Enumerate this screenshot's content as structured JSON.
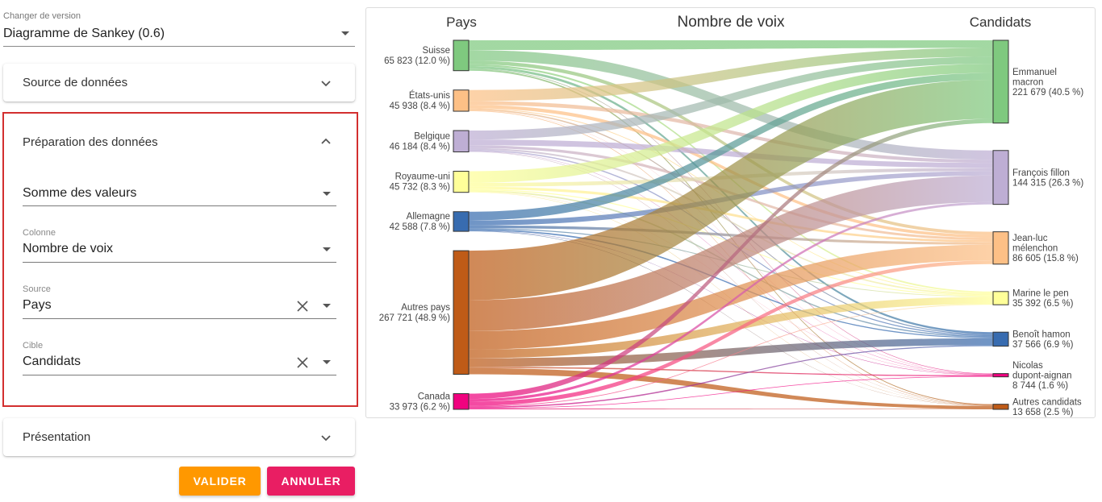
{
  "version": {
    "label": "Changer de version",
    "value": "Diagramme de Sankey (0.6)"
  },
  "panels": {
    "source": {
      "title": "Source de données"
    },
    "preparation": {
      "title": "Préparation des données",
      "aggregation": "Somme des valeurs",
      "column": {
        "label": "Colonne",
        "value": "Nombre de voix"
      },
      "source_field": {
        "label": "Source",
        "value": "Pays"
      },
      "target_field": {
        "label": "Cible",
        "value": "Candidats"
      }
    },
    "presentation": {
      "title": "Présentation"
    }
  },
  "buttons": {
    "validate": "VALIDER",
    "cancel": "ANNULER"
  },
  "colors": {
    "validate": "#ff9800",
    "cancel": "#e91e63",
    "highlight_border": "#d32f2f"
  },
  "chart_data": {
    "type": "sankey",
    "title": "Nombre de voix",
    "left_header": "Pays",
    "right_header": "Candidats",
    "sources": [
      {
        "name": "Suisse",
        "label": "65 823 (12.0 %)",
        "value": 65823,
        "color": "#7fc97f"
      },
      {
        "name": "États-unis",
        "label": "45 938 (8.4 %)",
        "value": 45938,
        "color": "#fdc086"
      },
      {
        "name": "Belgique",
        "label": "46 184 (8.4 %)",
        "value": 46184,
        "color": "#beaed4"
      },
      {
        "name": "Royaume-uni",
        "label": "45 732 (8.3 %)",
        "value": 45732,
        "color": "#ffff99"
      },
      {
        "name": "Allemagne",
        "label": "42 588 (7.8 %)",
        "value": 42588,
        "color": "#386cb0"
      },
      {
        "name": "Autres pays",
        "label": "267 721 (48.9 %)",
        "value": 267721,
        "color": "#bf5b17"
      },
      {
        "name": "Canada",
        "label": "33 973 (6.2 %)",
        "value": 33973,
        "color": "#f0027f"
      }
    ],
    "targets": [
      {
        "lines": [
          "Emmanuel",
          "macron"
        ],
        "label": "221 679 (40.5 %)",
        "value": 221679,
        "color": "#7fc97f"
      },
      {
        "lines": [
          "François fillon"
        ],
        "label": "144 315 (26.3 %)",
        "value": 144315,
        "color": "#beaed4"
      },
      {
        "lines": [
          "Jean-luc",
          "mélenchon"
        ],
        "label": "86 605 (15.8 %)",
        "value": 86605,
        "color": "#fdc086"
      },
      {
        "lines": [
          "Marine le pen"
        ],
        "label": "35 392 (6.5 %)",
        "value": 35392,
        "color": "#ffff99"
      },
      {
        "lines": [
          "Benoît hamon"
        ],
        "label": "37 566 (6.9 %)",
        "value": 37566,
        "color": "#386cb0"
      },
      {
        "lines": [
          "Nicolas",
          "dupont-aignan"
        ],
        "label": "8 744 (1.6 %)",
        "value": 8744,
        "color": "#f0027f"
      },
      {
        "lines": [
          "Autres candidats"
        ],
        "label": "13 658 (2.5 %)",
        "value": 13658,
        "color": "#bf5b17"
      }
    ],
    "flows": [
      [
        0,
        0,
        0.32
      ],
      [
        0,
        1,
        0.35
      ],
      [
        0,
        2,
        0.12
      ],
      [
        0,
        3,
        0.06
      ],
      [
        0,
        4,
        0.08
      ],
      [
        0,
        5,
        0.02
      ],
      [
        0,
        6,
        0.05
      ],
      [
        1,
        0,
        0.52
      ],
      [
        1,
        1,
        0.18
      ],
      [
        1,
        2,
        0.16
      ],
      [
        1,
        3,
        0.04
      ],
      [
        1,
        4,
        0.06
      ],
      [
        1,
        5,
        0.01
      ],
      [
        1,
        6,
        0.03
      ],
      [
        2,
        0,
        0.42
      ],
      [
        2,
        1,
        0.27
      ],
      [
        2,
        2,
        0.13
      ],
      [
        2,
        3,
        0.08
      ],
      [
        2,
        4,
        0.06
      ],
      [
        2,
        5,
        0.02
      ],
      [
        2,
        6,
        0.02
      ],
      [
        3,
        0,
        0.55
      ],
      [
        3,
        1,
        0.18
      ],
      [
        3,
        2,
        0.12
      ],
      [
        3,
        3,
        0.05
      ],
      [
        3,
        4,
        0.07
      ],
      [
        3,
        5,
        0.01
      ],
      [
        3,
        6,
        0.02
      ],
      [
        4,
        0,
        0.44
      ],
      [
        4,
        1,
        0.26
      ],
      [
        4,
        2,
        0.14
      ],
      [
        4,
        3,
        0.05
      ],
      [
        4,
        4,
        0.07
      ],
      [
        4,
        5,
        0.02
      ],
      [
        4,
        6,
        0.02
      ],
      [
        5,
        0,
        0.4
      ],
      [
        5,
        1,
        0.25
      ],
      [
        5,
        2,
        0.15
      ],
      [
        5,
        3,
        0.07
      ],
      [
        5,
        4,
        0.07
      ],
      [
        5,
        5,
        0.01
      ],
      [
        5,
        6,
        0.05
      ],
      [
        6,
        0,
        0.34
      ],
      [
        6,
        1,
        0.17
      ],
      [
        6,
        2,
        0.27
      ],
      [
        6,
        3,
        0.05
      ],
      [
        6,
        4,
        0.08
      ],
      [
        6,
        5,
        0.04
      ],
      [
        6,
        6,
        0.05
      ]
    ]
  }
}
